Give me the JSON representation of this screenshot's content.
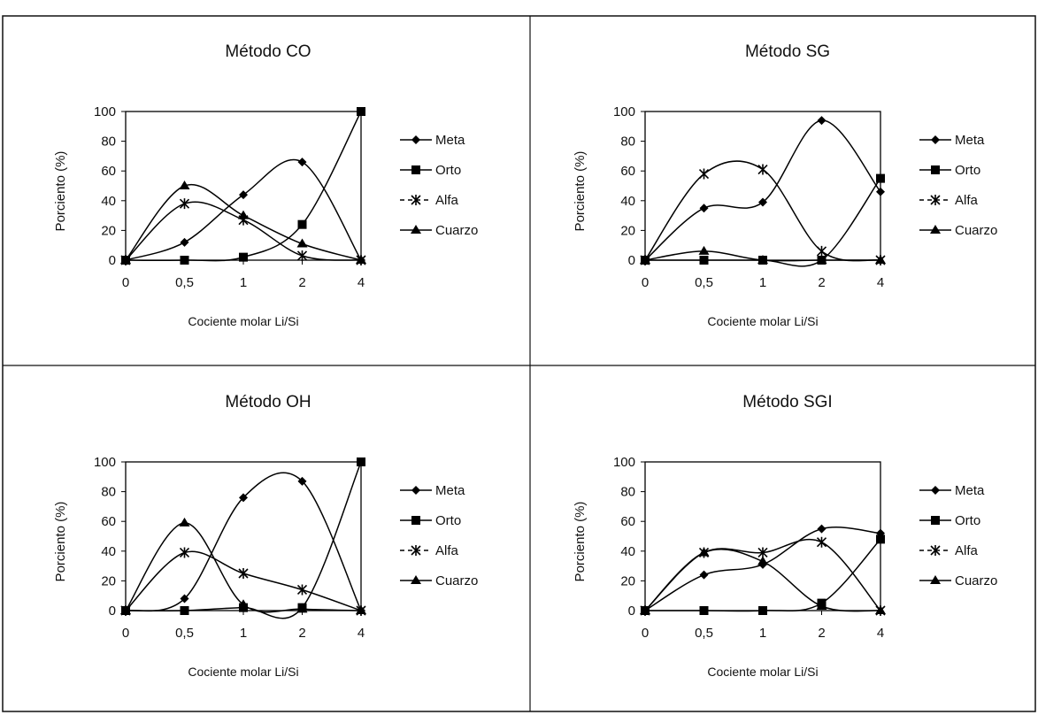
{
  "chart_data": [
    {
      "type": "line",
      "title": "Método CO",
      "xlabel": "Cociente molar Li/Si",
      "ylabel": "Porciento (%)",
      "categories": [
        "0",
        "0,5",
        "1",
        "2",
        "4"
      ],
      "ylim": [
        0,
        100
      ],
      "yticks": [
        "0",
        "20",
        "40",
        "60",
        "80",
        "100"
      ],
      "grid": false,
      "legend": "right",
      "series": [
        {
          "name": "Meta",
          "marker": "diamond",
          "values": [
            0,
            12,
            44,
            66,
            0
          ]
        },
        {
          "name": "Orto",
          "marker": "square",
          "values": [
            0,
            0,
            2,
            24,
            100
          ]
        },
        {
          "name": "Alfa",
          "marker": "star",
          "values": [
            0,
            38,
            27,
            3,
            0
          ]
        },
        {
          "name": "Cuarzo",
          "marker": "triangle",
          "values": [
            0,
            50,
            30,
            11,
            0
          ]
        }
      ]
    },
    {
      "type": "line",
      "title": "Método SG",
      "xlabel": "Cociente molar Li/Si",
      "ylabel": "Porciento (%)",
      "categories": [
        "0",
        "0,5",
        "1",
        "2",
        "4"
      ],
      "ylim": [
        0,
        100
      ],
      "yticks": [
        "0",
        "20",
        "40",
        "60",
        "80",
        "100"
      ],
      "grid": false,
      "legend": "right",
      "series": [
        {
          "name": "Meta",
          "marker": "diamond",
          "values": [
            0,
            35,
            39,
            94,
            46
          ]
        },
        {
          "name": "Orto",
          "marker": "square",
          "values": [
            0,
            0,
            0,
            0,
            55
          ]
        },
        {
          "name": "Alfa",
          "marker": "star",
          "values": [
            0,
            58,
            61,
            6,
            0
          ]
        },
        {
          "name": "Cuarzo",
          "marker": "triangle",
          "values": [
            0,
            6,
            0,
            0,
            0
          ]
        }
      ]
    },
    {
      "type": "line",
      "title": "Método OH",
      "xlabel": "Cociente molar Li/Si",
      "ylabel": "Porciento (%)",
      "categories": [
        "0",
        "0,5",
        "1",
        "2",
        "4"
      ],
      "ylim": [
        0,
        100
      ],
      "yticks": [
        "0",
        "20",
        "40",
        "60",
        "80",
        "100"
      ],
      "grid": false,
      "legend": "right",
      "series": [
        {
          "name": "Meta",
          "marker": "diamond",
          "values": [
            0,
            8,
            76,
            87,
            0
          ]
        },
        {
          "name": "Orto",
          "marker": "square",
          "values": [
            0,
            0,
            2,
            2,
            100
          ]
        },
        {
          "name": "Alfa",
          "marker": "star",
          "values": [
            0,
            39,
            25,
            14,
            0
          ]
        },
        {
          "name": "Cuarzo",
          "marker": "triangle",
          "values": [
            0,
            59,
            4,
            1,
            0
          ]
        }
      ]
    },
    {
      "type": "line",
      "title": "Método SGI",
      "xlabel": "Cociente molar Li/Si",
      "ylabel": "Porciento (%)",
      "categories": [
        "0",
        "0,5",
        "1",
        "2",
        "4"
      ],
      "ylim": [
        0,
        100
      ],
      "yticks": [
        "0",
        "20",
        "40",
        "60",
        "80",
        "100"
      ],
      "grid": false,
      "legend": "right",
      "series": [
        {
          "name": "Meta",
          "marker": "diamond",
          "values": [
            0,
            24,
            31,
            55,
            52
          ]
        },
        {
          "name": "Orto",
          "marker": "square",
          "values": [
            0,
            0,
            0,
            5,
            48
          ]
        },
        {
          "name": "Alfa",
          "marker": "star",
          "values": [
            0,
            39,
            39,
            46,
            0
          ]
        },
        {
          "name": "Cuarzo",
          "marker": "triangle",
          "values": [
            0,
            39,
            33,
            3,
            0
          ]
        }
      ]
    }
  ]
}
